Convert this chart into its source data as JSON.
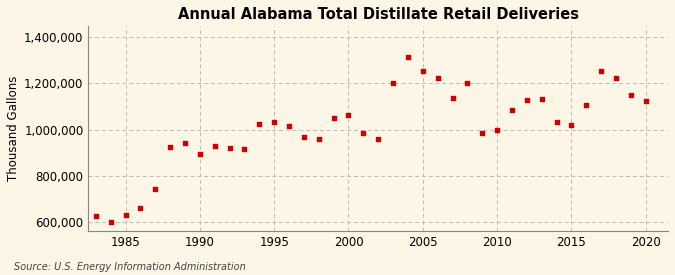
{
  "title": "Annual Alabama Total Distillate Retail Deliveries",
  "ylabel": "Thousand Gallons",
  "source": "Source: U.S. Energy Information Administration",
  "background_color": "#fdf5e6",
  "plot_bg_color": "#fdf5e6",
  "grid_color": "#bbbbbb",
  "marker_color": "#cc0000",
  "years": [
    1983,
    1984,
    1985,
    1986,
    1987,
    1988,
    1989,
    1990,
    1991,
    1992,
    1993,
    1994,
    1995,
    1996,
    1997,
    1998,
    1999,
    2000,
    2001,
    2002,
    2003,
    2004,
    2005,
    2006,
    2007,
    2008,
    2009,
    2010,
    2011,
    2012,
    2013,
    2014,
    2015,
    2016,
    2017,
    2018,
    2019,
    2020
  ],
  "values": [
    625000,
    598000,
    630000,
    660000,
    742000,
    925000,
    940000,
    896000,
    930000,
    922000,
    916000,
    1022000,
    1035000,
    1015000,
    968000,
    958000,
    1050000,
    1065000,
    983000,
    960000,
    1200000,
    1315000,
    1255000,
    1222000,
    1135000,
    1200000,
    984000,
    1000000,
    1085000,
    1128000,
    1132000,
    1033000,
    1020000,
    1105000,
    1255000,
    1222000,
    1150000,
    1125000
  ],
  "ylim": [
    560000,
    1450000
  ],
  "xlim": [
    1982.5,
    2021.5
  ],
  "yticks": [
    600000,
    800000,
    1000000,
    1200000,
    1400000
  ],
  "xticks": [
    1985,
    1990,
    1995,
    2000,
    2005,
    2010,
    2015,
    2020
  ]
}
